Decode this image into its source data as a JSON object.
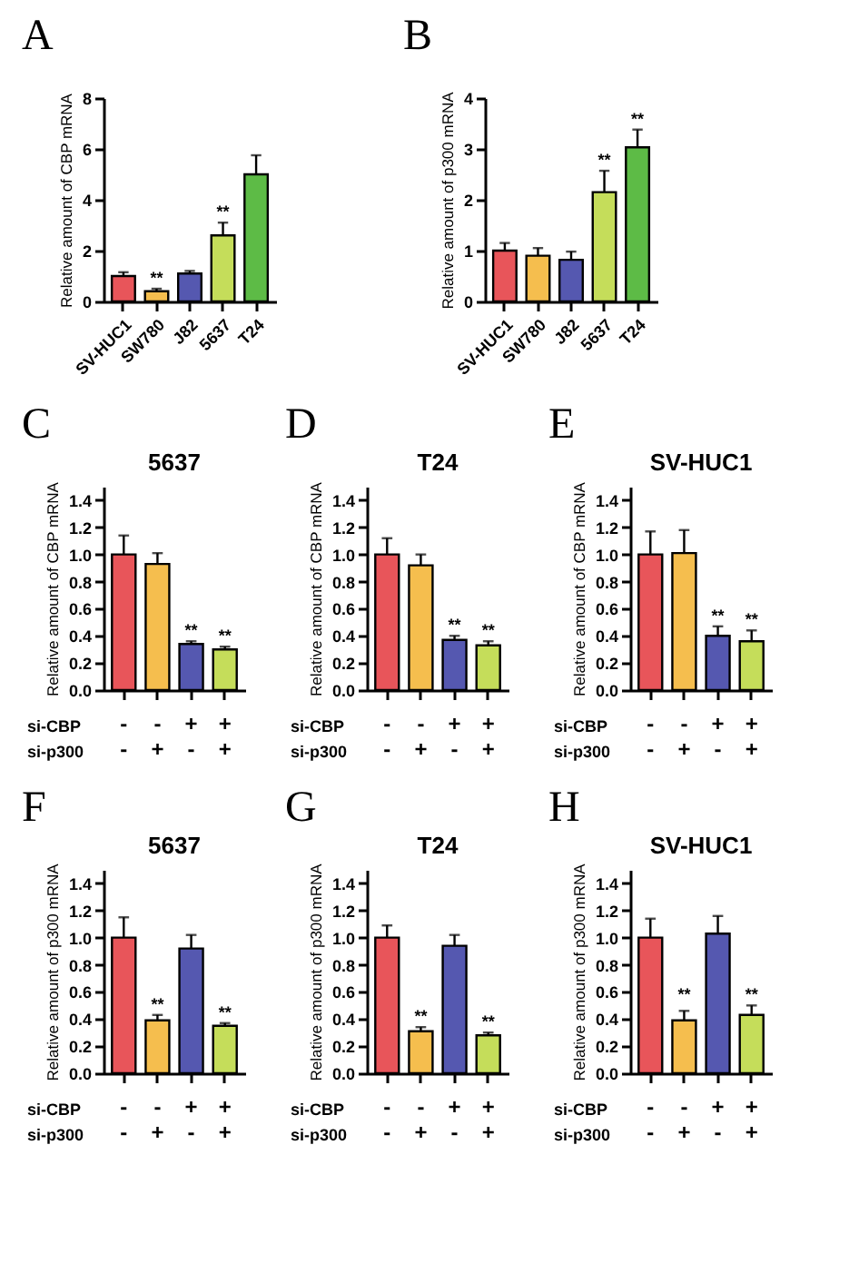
{
  "chart_data": [
    {
      "type": "bar",
      "ylabel": "Relative amount of CBP mRNA",
      "categories": [
        "SV-HUC1",
        "SW780",
        "J82",
        "5637",
        "T24"
      ],
      "values": [
        1.0,
        0.4,
        1.1,
        2.6,
        5.0
      ],
      "colors": [
        "#e8555a",
        "#f5be4e",
        "#5558b0",
        "#c5dd5a",
        "#5dbb46"
      ],
      "errors": [
        [
          1.0,
          1.15
        ],
        [
          0.4,
          0.5
        ],
        [
          1.1,
          1.2
        ],
        [
          2.6,
          3.1
        ],
        [
          5.0,
          5.75
        ]
      ],
      "ylim": [
        0,
        8
      ],
      "yticks": [
        0,
        2,
        4,
        6,
        8
      ],
      "annotations": [
        "A",
        {
          "text": "**",
          "x": "SW780",
          "y": 0.5
        },
        {
          "text": "**",
          "x": "5637",
          "y": 3.1
        }
      ]
    },
    {
      "type": "bar",
      "ylabel": "Relative amount of p300 mRNA",
      "categories": [
        "SV-HUC1",
        "SW780",
        "J82",
        "5637",
        "T24"
      ],
      "values": [
        1.0,
        0.9,
        0.82,
        2.15,
        3.03
      ],
      "colors": [
        "#e8555a",
        "#f5be4e",
        "#5558b0",
        "#c5dd5a",
        "#5dbb46"
      ],
      "errors": [
        [
          1.0,
          1.15
        ],
        [
          0.9,
          1.05
        ],
        [
          0.82,
          0.98
        ],
        [
          2.15,
          2.57
        ],
        [
          3.03,
          3.38
        ]
      ],
      "ylim": [
        0,
        4
      ],
      "yticks": [
        0,
        1,
        2,
        3,
        4
      ],
      "annotations": [
        "B",
        {
          "text": "**",
          "x": "5637",
          "y": 2.57
        },
        {
          "text": "**",
          "x": "T24",
          "y": 3.38
        }
      ]
    },
    {
      "type": "bar",
      "title": "5637",
      "ylabel": "Relative amount of CBP mRNA",
      "categories": [
        "-\n-",
        "-\n+",
        "+\n-",
        "+\n+"
      ],
      "values": [
        1.0,
        0.93,
        0.34,
        0.3
      ],
      "colors": [
        "#e8555a",
        "#f5be4e",
        "#5558b0",
        "#c5dd5a"
      ],
      "errors": [
        [
          1.0,
          1.14
        ],
        [
          0.93,
          1.01
        ],
        [
          0.34,
          0.36
        ],
        [
          0.3,
          0.32
        ]
      ],
      "ylim": [
        0,
        1.5
      ],
      "yticks": [
        {
          "value": 0,
          "label": "0.0"
        },
        {
          "value": 0.2,
          "label": "0.2"
        },
        {
          "value": 0.4,
          "label": "0.4"
        },
        {
          "value": 0.6,
          "label": "0.6"
        },
        {
          "value": 0.8,
          "label": "0.8"
        },
        {
          "value": 1.0,
          "label": "1.0"
        },
        {
          "value": 1.2,
          "label": "1.2"
        },
        {
          "value": 1.4,
          "label": "1.4"
        }
      ],
      "annotations": [
        "C",
        "si-CBP",
        "si-p300",
        {
          "text": "**",
          "x": "+\n-",
          "y": 0.36
        },
        {
          "text": "**",
          "x": "+\n+",
          "y": 0.32
        }
      ]
    },
    {
      "type": "bar",
      "title": "T24",
      "ylabel": "Relative amount of CBP mRNA",
      "categories": [
        "-\n-",
        "-\n+",
        "+\n-",
        "+\n+"
      ],
      "values": [
        1.0,
        0.92,
        0.37,
        0.33
      ],
      "colors": [
        "#e8555a",
        "#f5be4e",
        "#5558b0",
        "#c5dd5a"
      ],
      "errors": [
        [
          1.0,
          1.12
        ],
        [
          0.92,
          1.0
        ],
        [
          0.37,
          0.4
        ],
        [
          0.33,
          0.36
        ]
      ],
      "ylim": [
        0,
        1.5
      ],
      "yticks": [
        {
          "value": 0,
          "label": "0.0"
        },
        {
          "value": 0.2,
          "label": "0.2"
        },
        {
          "value": 0.4,
          "label": "0.4"
        },
        {
          "value": 0.6,
          "label": "0.6"
        },
        {
          "value": 0.8,
          "label": "0.8"
        },
        {
          "value": 1.0,
          "label": "1.0"
        },
        {
          "value": 1.2,
          "label": "1.2"
        },
        {
          "value": 1.4,
          "label": "1.4"
        }
      ],
      "annotations": [
        "D",
        "si-CBP",
        "si-p300",
        {
          "text": "**",
          "x": "+\n-",
          "y": 0.4
        },
        {
          "text": "**",
          "x": "+\n+",
          "y": 0.36
        }
      ]
    },
    {
      "type": "bar",
      "title": "SV-HUC1",
      "ylabel": "Relative amount of CBP mRNA",
      "categories": [
        "-\n-",
        "-\n+",
        "+\n-",
        "+\n+"
      ],
      "values": [
        1.0,
        1.01,
        0.4,
        0.36
      ],
      "colors": [
        "#e8555a",
        "#f5be4e",
        "#5558b0",
        "#c5dd5a"
      ],
      "errors": [
        [
          1.0,
          1.17
        ],
        [
          1.01,
          1.18
        ],
        [
          0.4,
          0.47
        ],
        [
          0.36,
          0.44
        ]
      ],
      "ylim": [
        0,
        1.5
      ],
      "yticks": [
        {
          "value": 0,
          "label": "0.0"
        },
        {
          "value": 0.2,
          "label": "0.2"
        },
        {
          "value": 0.4,
          "label": "0.4"
        },
        {
          "value": 0.6,
          "label": "0.6"
        },
        {
          "value": 0.8,
          "label": "0.8"
        },
        {
          "value": 1.0,
          "label": "1.0"
        },
        {
          "value": 1.2,
          "label": "1.2"
        },
        {
          "value": 1.4,
          "label": "1.4"
        }
      ],
      "annotations": [
        "E",
        "si-CBP",
        "si-p300",
        {
          "text": "**",
          "x": "+\n-",
          "y": 0.47
        },
        {
          "text": "**",
          "x": "+\n+",
          "y": 0.44
        }
      ]
    },
    {
      "type": "bar",
      "title": "5637",
      "ylabel": "Relative amount of p300 mRNA",
      "categories": [
        "-\n-",
        "-\n+",
        "+\n-",
        "+\n+"
      ],
      "values": [
        1.0,
        0.39,
        0.92,
        0.35
      ],
      "colors": [
        "#e8555a",
        "#f5be4e",
        "#5558b0",
        "#c5dd5a"
      ],
      "errors": [
        [
          1.0,
          1.15
        ],
        [
          0.39,
          0.43
        ],
        [
          0.92,
          1.02
        ],
        [
          0.35,
          0.37
        ]
      ],
      "ylim": [
        0,
        1.5
      ],
      "yticks": [
        {
          "value": 0,
          "label": "0.0"
        },
        {
          "value": 0.2,
          "label": "0.2"
        },
        {
          "value": 0.4,
          "label": "0.4"
        },
        {
          "value": 0.6,
          "label": "0.6"
        },
        {
          "value": 0.8,
          "label": "0.8"
        },
        {
          "value": 1.0,
          "label": "1.0"
        },
        {
          "value": 1.2,
          "label": "1.2"
        },
        {
          "value": 1.4,
          "label": "1.4"
        }
      ],
      "annotations": [
        "F",
        "si-CBP",
        "si-p300",
        {
          "text": "**",
          "x": "-\n+",
          "y": 0.43
        },
        {
          "text": "**",
          "x": "+\n+",
          "y": 0.37
        }
      ]
    },
    {
      "type": "bar",
      "title": "T24",
      "ylabel": "Relative amount of p300 mRNA",
      "categories": [
        "-\n-",
        "-\n+",
        "+\n-",
        "+\n+"
      ],
      "values": [
        1.0,
        0.31,
        0.94,
        0.28
      ],
      "colors": [
        "#e8555a",
        "#f5be4e",
        "#5558b0",
        "#c5dd5a"
      ],
      "errors": [
        [
          1.0,
          1.09
        ],
        [
          0.31,
          0.34
        ],
        [
          0.94,
          1.02
        ],
        [
          0.28,
          0.3
        ]
      ],
      "ylim": [
        0,
        1.5
      ],
      "yticks": [
        {
          "value": 0,
          "label": "0.0"
        },
        {
          "value": 0.2,
          "label": "0.2"
        },
        {
          "value": 0.4,
          "label": "0.4"
        },
        {
          "value": 0.6,
          "label": "0.6"
        },
        {
          "value": 0.8,
          "label": "0.8"
        },
        {
          "value": 1.0,
          "label": "1.0"
        },
        {
          "value": 1.2,
          "label": "1.2"
        },
        {
          "value": 1.4,
          "label": "1.4"
        }
      ],
      "annotations": [
        "G",
        "si-CBP",
        "si-p300",
        {
          "text": "**",
          "x": "-\n+",
          "y": 0.34
        },
        {
          "text": "**",
          "x": "+\n+",
          "y": 0.3
        }
      ]
    },
    {
      "type": "bar",
      "title": "SV-HUC1",
      "ylabel": "Relative amount of p300 mRNA",
      "categories": [
        "-\n-",
        "-\n+",
        "+\n-",
        "+\n+"
      ],
      "values": [
        1.0,
        0.39,
        1.03,
        0.43
      ],
      "colors": [
        "#e8555a",
        "#f5be4e",
        "#5558b0",
        "#c5dd5a"
      ],
      "errors": [
        [
          1.0,
          1.14
        ],
        [
          0.39,
          0.46
        ],
        [
          1.03,
          1.16
        ],
        [
          0.43,
          0.5
        ]
      ],
      "ylim": [
        0,
        1.5
      ],
      "yticks": [
        {
          "value": 0,
          "label": "0.0"
        },
        {
          "value": 0.2,
          "label": "0.2"
        },
        {
          "value": 0.4,
          "label": "0.4"
        },
        {
          "value": 0.6,
          "label": "0.6"
        },
        {
          "value": 0.8,
          "label": "0.8"
        },
        {
          "value": 1.0,
          "label": "1.0"
        },
        {
          "value": 1.2,
          "label": "1.2"
        },
        {
          "value": 1.4,
          "label": "1.4"
        }
      ],
      "annotations": [
        "H",
        "si-CBP",
        "si-p300",
        {
          "text": "**",
          "x": "-\n+",
          "y": 0.5
        },
        {
          "text": "**",
          "x": "+\n+",
          "y": 0.5
        }
      ]
    }
  ]
}
